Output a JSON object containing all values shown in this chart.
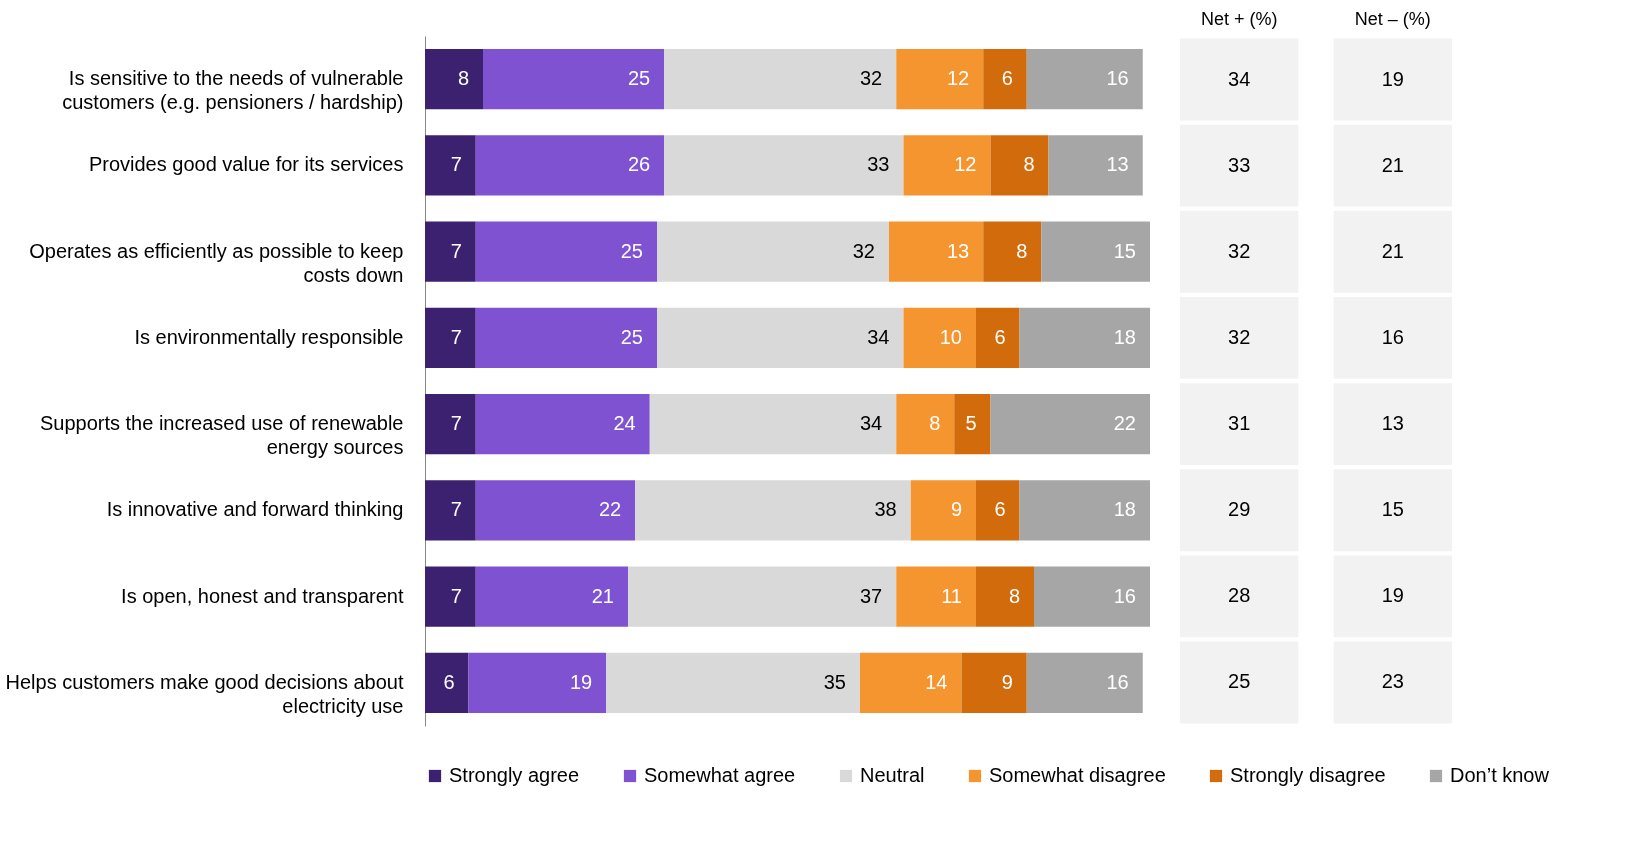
{
  "chart_data": [
    {
      "type": "bar",
      "orientation": "horizontal",
      "stacked": true,
      "data_labels": true,
      "legend": "bottom",
      "categories": [
        "Is sensitive to the needs of vulnerable customers (e.g. pensioners / hardship)",
        "Provides good value for its services",
        "Operates as efficiently as possible to keep costs down",
        "Is environmentally responsible",
        "Supports the increased use of renewable energy sources",
        "Is innovative and forward thinking",
        "Is open, honest and transparent",
        "Helps customers make good decisions about electricity use"
      ],
      "series": [
        {
          "name": "Strongly agree",
          "color": "#3c2170",
          "values": [
            8,
            7,
            7,
            7,
            7,
            7,
            7,
            6
          ]
        },
        {
          "name": "Somewhat agree",
          "color": "#7f52d1",
          "values": [
            25,
            26,
            25,
            25,
            24,
            22,
            21,
            19
          ]
        },
        {
          "name": "Neutral",
          "color": "#d9d9d9",
          "values": [
            32,
            33,
            32,
            34,
            34,
            38,
            37,
            35
          ]
        },
        {
          "name": "Somewhat disagree",
          "color": "#f5952f",
          "values": [
            12,
            12,
            13,
            10,
            8,
            9,
            11,
            14
          ]
        },
        {
          "name": "Strongly disagree",
          "color": "#d26b0c",
          "values": [
            6,
            8,
            8,
            6,
            5,
            6,
            8,
            9
          ]
        },
        {
          "name": "Don’t know",
          "color": "#a6a6a6",
          "values": [
            16,
            13,
            15,
            18,
            22,
            18,
            16,
            16
          ]
        }
      ]
    },
    {
      "type": "other",
      "color": "#f2f2f2",
      "categories": [
        "Net + (%)",
        "Net – (%)"
      ],
      "annotations": [
        "34",
        "19",
        "33",
        "21",
        "32",
        "21",
        "32",
        "16",
        "31",
        "13",
        "29",
        "15",
        "28",
        "19",
        "25",
        "23"
      ]
    }
  ]
}
